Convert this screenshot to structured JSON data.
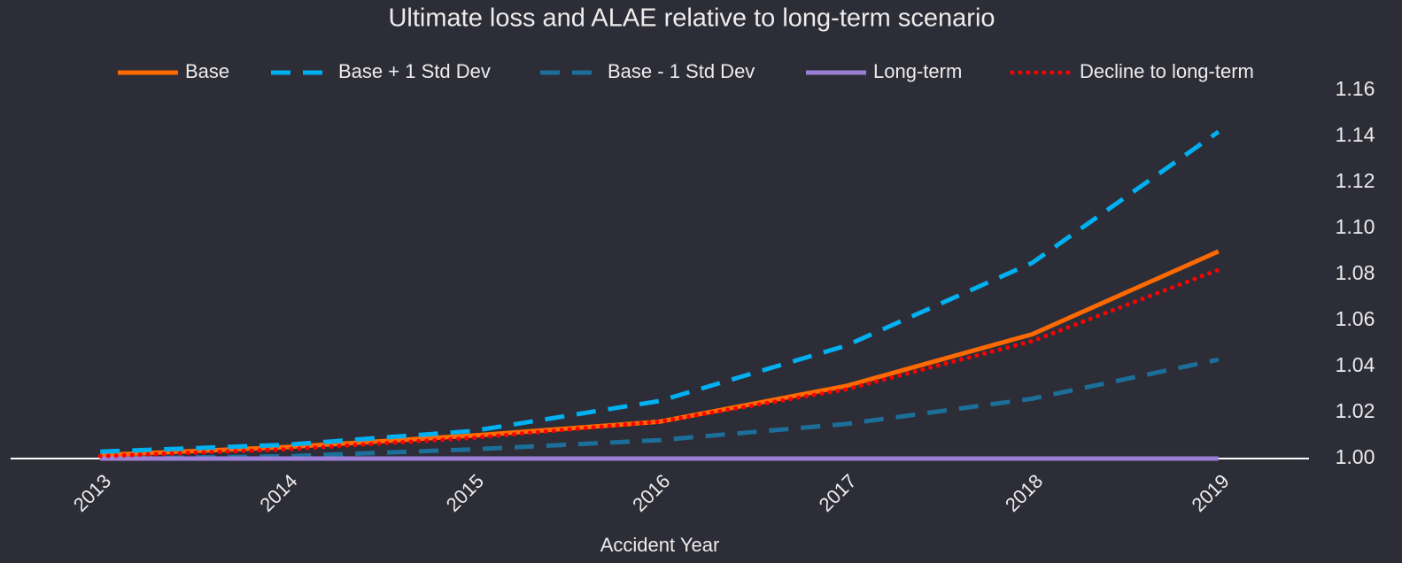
{
  "chart_data": {
    "type": "line",
    "title": "Ultimate loss and ALAE relative to long-term scenario",
    "x_label": "Accident Year",
    "categories": [
      "2013",
      "2014",
      "2015",
      "2016",
      "2017",
      "2018",
      "2019"
    ],
    "series": [
      {
        "name": "Base",
        "color": "#ff6a00",
        "dash": "solid",
        "values": [
          1.0015,
          1.005,
          1.01,
          1.016,
          1.0315,
          1.054,
          1.09
        ]
      },
      {
        "name": "Base + 1 Std Dev",
        "color": "#00b0f0",
        "dash": "dashed",
        "values": [
          1.003,
          1.006,
          1.012,
          1.025,
          1.049,
          1.085,
          1.142
        ]
      },
      {
        "name": "Base - 1 Std Dev",
        "color": "#1b6f98",
        "dash": "dashed",
        "values": [
          1.0,
          1.001,
          1.004,
          1.008,
          1.015,
          1.026,
          1.043
        ]
      },
      {
        "name": "Long-term",
        "color": "#9b7fd4",
        "dash": "solid",
        "values": [
          1,
          1,
          1,
          1,
          1,
          1,
          1
        ]
      },
      {
        "name": "Decline to long-term",
        "color": "#ff0000",
        "dash": "dotted",
        "values": [
          1.001,
          1.004,
          1.009,
          1.016,
          1.03,
          1.051,
          1.082
        ]
      }
    ],
    "ylim": [
      1.0,
      1.16
    ],
    "yticks": [
      {
        "value": 1.0,
        "label": "1.00"
      },
      {
        "value": 1.02,
        "label": "1.02"
      },
      {
        "value": 1.04,
        "label": "1.04"
      },
      {
        "value": 1.06,
        "label": "1.06"
      },
      {
        "value": 1.08,
        "label": "1.08"
      },
      {
        "value": 1.1,
        "label": "1.10"
      },
      {
        "value": 1.12,
        "label": "1.12"
      },
      {
        "value": 1.14,
        "label": "1.14"
      },
      {
        "value": 1.16,
        "label": "1.16"
      }
    ],
    "y_axis_side": "right",
    "legend": "top",
    "grid": false
  }
}
